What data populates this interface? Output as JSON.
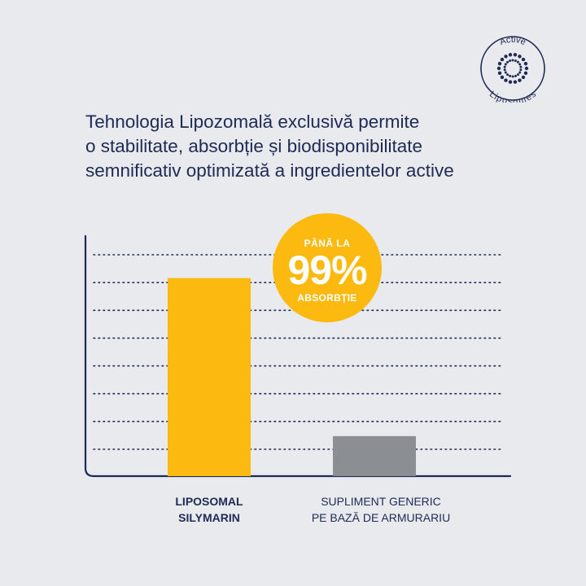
{
  "headline": {
    "lines": [
      "Tehnologia Lipozomală exclusivă permite",
      "o stabilitate, absorbție și biodisponibilitate",
      "semnificativ optimizată a ingredientelor active"
    ]
  },
  "logo": {
    "top_text": "Active",
    "bottom_text": "Liposomes",
    "color": "#1f2a55"
  },
  "badge": {
    "line1": "PÂNĂ LA",
    "value": "99%",
    "line2": "ABSORBȚIE",
    "color": "#fcb90f"
  },
  "chart_data": {
    "type": "bar",
    "categories": [
      "LIPOSOMAL\nSILYMARIN",
      "SUPLIMENT GENERIC\nPE BAZĂ DE ARMURARIU"
    ],
    "values": [
      99,
      20
    ],
    "ylim": [
      0,
      120
    ],
    "grid": true,
    "grid_lines": 8,
    "colors": [
      "#fcb90f",
      "#8b8f93"
    ],
    "axis_color": "#1f2a55"
  }
}
